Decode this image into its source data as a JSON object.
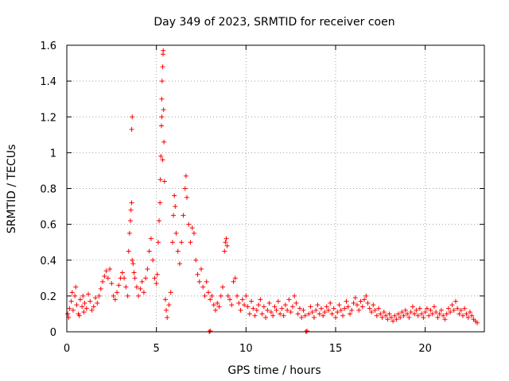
{
  "chart_data": {
    "type": "scatter",
    "title": "Day 349 of 2023, SRMTID for receiver coen",
    "xlabel": "GPS time / hours",
    "ylabel": "SRMTID / TECUs",
    "xlim": [
      0,
      23.3
    ],
    "ylim": [
      0,
      1.6
    ],
    "xticks": [
      0,
      5,
      10,
      15,
      20
    ],
    "yticks": [
      0,
      0.2,
      0.4,
      0.6,
      0.8,
      1,
      1.2,
      1.4,
      1.6
    ],
    "ytick_labels": [
      "0",
      "0.2",
      "0.4",
      "0.6",
      "0.8",
      "1",
      "1.2",
      "1.4",
      "1.6"
    ],
    "grid": true,
    "marker": "+",
    "color": "#ff0000",
    "series": [
      {
        "name": "SRMTID",
        "points": [
          [
            0.05,
            0.1
          ],
          [
            0.15,
            0.13
          ],
          [
            0.25,
            0.17
          ],
          [
            0.35,
            0.12
          ],
          [
            0.45,
            0.2
          ],
          [
            0.55,
            0.15
          ],
          [
            0.65,
            0.1
          ],
          [
            0.75,
            0.18
          ],
          [
            0.85,
            0.14
          ],
          [
            0.95,
            0.11
          ],
          [
            0.1,
            0.08
          ],
          [
            0.3,
            0.22
          ],
          [
            0.5,
            0.25
          ],
          [
            0.7,
            0.09
          ],
          [
            0.9,
            0.2
          ],
          [
            1.0,
            0.16
          ],
          [
            1.1,
            0.13
          ],
          [
            1.2,
            0.21
          ],
          [
            1.3,
            0.17
          ],
          [
            1.4,
            0.12
          ],
          [
            1.5,
            0.14
          ],
          [
            1.6,
            0.19
          ],
          [
            1.7,
            0.16
          ],
          [
            1.8,
            0.2
          ],
          [
            1.9,
            0.24
          ],
          [
            2.0,
            0.28
          ],
          [
            2.1,
            0.31
          ],
          [
            2.2,
            0.34
          ],
          [
            2.3,
            0.3
          ],
          [
            2.4,
            0.35
          ],
          [
            2.5,
            0.27
          ],
          [
            2.6,
            0.2
          ],
          [
            2.7,
            0.18
          ],
          [
            2.8,
            0.22
          ],
          [
            2.9,
            0.26
          ],
          [
            3.0,
            0.3
          ],
          [
            3.1,
            0.33
          ],
          [
            3.2,
            0.3
          ],
          [
            3.3,
            0.25
          ],
          [
            3.4,
            0.2
          ],
          [
            3.45,
            0.45
          ],
          [
            3.5,
            0.55
          ],
          [
            3.55,
            0.62
          ],
          [
            3.58,
            0.68
          ],
          [
            3.62,
            0.72
          ],
          [
            3.65,
            0.4
          ],
          [
            3.7,
            0.38
          ],
          [
            3.75,
            0.33
          ],
          [
            3.62,
            1.13
          ],
          [
            3.65,
            1.2
          ],
          [
            3.8,
            0.3
          ],
          [
            3.9,
            0.25
          ],
          [
            4.0,
            0.2
          ],
          [
            4.1,
            0.24
          ],
          [
            4.2,
            0.28
          ],
          [
            4.3,
            0.22
          ],
          [
            4.4,
            0.3
          ],
          [
            4.5,
            0.35
          ],
          [
            4.6,
            0.45
          ],
          [
            4.7,
            0.52
          ],
          [
            4.8,
            0.4
          ],
          [
            4.9,
            0.3
          ],
          [
            5.0,
            0.27
          ],
          [
            5.05,
            0.32
          ],
          [
            5.1,
            0.5
          ],
          [
            5.15,
            0.62
          ],
          [
            5.2,
            0.72
          ],
          [
            5.22,
            0.85
          ],
          [
            5.25,
            0.98
          ],
          [
            5.28,
            1.15
          ],
          [
            5.3,
            1.3
          ],
          [
            5.32,
            1.4
          ],
          [
            5.35,
            1.48
          ],
          [
            5.37,
            1.55
          ],
          [
            5.38,
            1.57
          ],
          [
            5.4,
            1.24
          ],
          [
            5.42,
            1.06
          ],
          [
            5.45,
            0.84
          ],
          [
            5.35,
            0.96
          ],
          [
            5.3,
            1.2
          ],
          [
            5.5,
            0.18
          ],
          [
            5.55,
            0.12
          ],
          [
            5.6,
            0.08
          ],
          [
            5.7,
            0.15
          ],
          [
            5.8,
            0.22
          ],
          [
            5.9,
            0.5
          ],
          [
            5.95,
            0.65
          ],
          [
            6.0,
            0.76
          ],
          [
            6.05,
            0.7
          ],
          [
            6.1,
            0.55
          ],
          [
            6.2,
            0.45
          ],
          [
            6.3,
            0.38
          ],
          [
            6.4,
            0.5
          ],
          [
            6.5,
            0.65
          ],
          [
            6.6,
            0.8
          ],
          [
            6.65,
            0.87
          ],
          [
            6.7,
            0.75
          ],
          [
            6.8,
            0.6
          ],
          [
            6.9,
            0.5
          ],
          [
            7.0,
            0.58
          ],
          [
            7.1,
            0.55
          ],
          [
            7.2,
            0.4
          ],
          [
            7.3,
            0.32
          ],
          [
            7.4,
            0.28
          ],
          [
            7.5,
            0.35
          ],
          [
            7.6,
            0.25
          ],
          [
            7.7,
            0.2
          ],
          [
            7.8,
            0.28
          ],
          [
            7.9,
            0.22
          ],
          [
            8.0,
            0.18
          ],
          [
            7.95,
            0.0
          ],
          [
            8.0,
            0.005
          ],
          [
            8.1,
            0.2
          ],
          [
            8.2,
            0.15
          ],
          [
            8.3,
            0.12
          ],
          [
            8.4,
            0.16
          ],
          [
            8.5,
            0.14
          ],
          [
            8.6,
            0.2
          ],
          [
            8.7,
            0.25
          ],
          [
            8.8,
            0.45
          ],
          [
            8.85,
            0.5
          ],
          [
            8.9,
            0.52
          ],
          [
            8.95,
            0.48
          ],
          [
            9.0,
            0.2
          ],
          [
            9.1,
            0.18
          ],
          [
            9.2,
            0.15
          ],
          [
            9.3,
            0.28
          ],
          [
            9.4,
            0.3
          ],
          [
            9.5,
            0.2
          ],
          [
            9.6,
            0.16
          ],
          [
            9.7,
            0.12
          ],
          [
            9.8,
            0.18
          ],
          [
            9.9,
            0.15
          ],
          [
            10.0,
            0.2
          ],
          [
            10.1,
            0.14
          ],
          [
            10.2,
            0.1
          ],
          [
            10.3,
            0.17
          ],
          [
            10.4,
            0.13
          ],
          [
            10.5,
            0.09
          ],
          [
            10.6,
            0.12
          ],
          [
            10.7,
            0.15
          ],
          [
            10.8,
            0.18
          ],
          [
            10.9,
            0.1
          ],
          [
            11.0,
            0.14
          ],
          [
            11.1,
            0.08
          ],
          [
            11.2,
            0.12
          ],
          [
            11.3,
            0.16
          ],
          [
            11.4,
            0.11
          ],
          [
            11.5,
            0.09
          ],
          [
            11.6,
            0.14
          ],
          [
            11.7,
            0.12
          ],
          [
            11.8,
            0.17
          ],
          [
            11.9,
            0.1
          ],
          [
            12.0,
            0.13
          ],
          [
            12.1,
            0.09
          ],
          [
            12.2,
            0.15
          ],
          [
            12.3,
            0.12
          ],
          [
            12.4,
            0.18
          ],
          [
            12.5,
            0.11
          ],
          [
            12.6,
            0.14
          ],
          [
            12.7,
            0.2
          ],
          [
            12.8,
            0.16
          ],
          [
            12.9,
            0.1
          ],
          [
            13.0,
            0.13
          ],
          [
            13.1,
            0.08
          ],
          [
            13.2,
            0.12
          ],
          [
            13.3,
            0.09
          ],
          [
            13.35,
            0.0
          ],
          [
            13.4,
            0.005
          ],
          [
            13.5,
            0.1
          ],
          [
            13.6,
            0.14
          ],
          [
            13.7,
            0.11
          ],
          [
            13.8,
            0.08
          ],
          [
            13.9,
            0.12
          ],
          [
            14.0,
            0.15
          ],
          [
            14.1,
            0.1
          ],
          [
            14.2,
            0.13
          ],
          [
            14.3,
            0.09
          ],
          [
            14.4,
            0.11
          ],
          [
            14.5,
            0.14
          ],
          [
            14.6,
            0.12
          ],
          [
            14.7,
            0.16
          ],
          [
            14.8,
            0.1
          ],
          [
            14.9,
            0.13
          ],
          [
            15.0,
            0.08
          ],
          [
            15.1,
            0.11
          ],
          [
            15.2,
            0.15
          ],
          [
            15.3,
            0.12
          ],
          [
            15.4,
            0.09
          ],
          [
            15.5,
            0.13
          ],
          [
            15.6,
            0.17
          ],
          [
            15.7,
            0.14
          ],
          [
            15.8,
            0.1
          ],
          [
            15.9,
            0.12
          ],
          [
            16.0,
            0.16
          ],
          [
            16.1,
            0.19
          ],
          [
            16.2,
            0.15
          ],
          [
            16.3,
            0.12
          ],
          [
            16.4,
            0.17
          ],
          [
            16.5,
            0.14
          ],
          [
            16.6,
            0.18
          ],
          [
            16.7,
            0.2
          ],
          [
            16.8,
            0.16
          ],
          [
            16.9,
            0.13
          ],
          [
            17.0,
            0.11
          ],
          [
            17.1,
            0.15
          ],
          [
            17.2,
            0.12
          ],
          [
            17.3,
            0.09
          ],
          [
            17.4,
            0.13
          ],
          [
            17.5,
            0.1
          ],
          [
            17.6,
            0.08
          ],
          [
            17.7,
            0.11
          ],
          [
            17.8,
            0.09
          ],
          [
            17.9,
            0.07
          ],
          [
            18.0,
            0.1
          ],
          [
            18.1,
            0.08
          ],
          [
            18.2,
            0.06
          ],
          [
            18.3,
            0.09
          ],
          [
            18.4,
            0.07
          ],
          [
            18.5,
            0.1
          ],
          [
            18.6,
            0.08
          ],
          [
            18.7,
            0.11
          ],
          [
            18.8,
            0.09
          ],
          [
            18.9,
            0.12
          ],
          [
            19.0,
            0.1
          ],
          [
            19.1,
            0.08
          ],
          [
            19.2,
            0.11
          ],
          [
            19.3,
            0.14
          ],
          [
            19.4,
            0.1
          ],
          [
            19.5,
            0.12
          ],
          [
            19.6,
            0.09
          ],
          [
            19.7,
            0.13
          ],
          [
            19.8,
            0.1
          ],
          [
            19.9,
            0.08
          ],
          [
            20.0,
            0.11
          ],
          [
            20.1,
            0.13
          ],
          [
            20.2,
            0.09
          ],
          [
            20.3,
            0.12
          ],
          [
            20.4,
            0.1
          ],
          [
            20.5,
            0.14
          ],
          [
            20.6,
            0.11
          ],
          [
            20.7,
            0.08
          ],
          [
            20.8,
            0.1
          ],
          [
            20.9,
            0.12
          ],
          [
            21.0,
            0.09
          ],
          [
            21.1,
            0.07
          ],
          [
            21.2,
            0.1
          ],
          [
            21.3,
            0.13
          ],
          [
            21.4,
            0.11
          ],
          [
            21.5,
            0.15
          ],
          [
            21.6,
            0.12
          ],
          [
            21.7,
            0.17
          ],
          [
            21.8,
            0.13
          ],
          [
            21.9,
            0.1
          ],
          [
            22.0,
            0.12
          ],
          [
            22.1,
            0.09
          ],
          [
            22.2,
            0.13
          ],
          [
            22.3,
            0.1
          ],
          [
            22.4,
            0.08
          ],
          [
            22.5,
            0.11
          ],
          [
            22.6,
            0.09
          ],
          [
            22.7,
            0.07
          ],
          [
            22.8,
            0.06
          ],
          [
            22.9,
            0.05
          ]
        ]
      }
    ]
  }
}
